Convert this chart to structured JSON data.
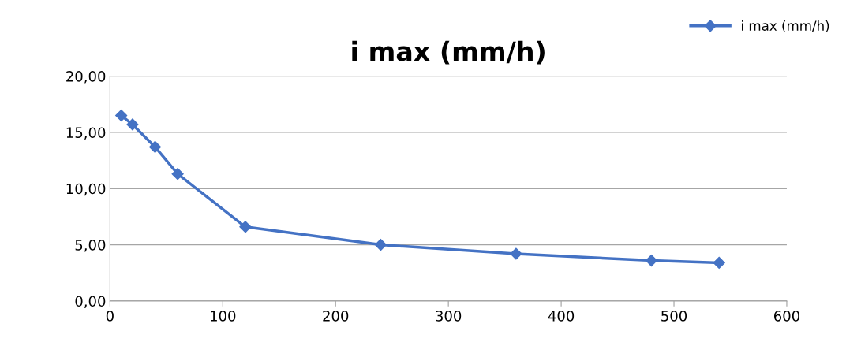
{
  "chart_data": {
    "type": "line",
    "title": "i max (mm/h)",
    "x": [
      10,
      20,
      40,
      60,
      120,
      240,
      360,
      480,
      540
    ],
    "series": [
      {
        "name": "i max (mm/h)",
        "color": "#4472c4",
        "values": [
          16.5,
          15.7,
          13.7,
          11.3,
          6.6,
          5.0,
          4.2,
          3.6,
          3.4
        ]
      }
    ],
    "xlim": [
      0,
      600
    ],
    "xticks": [
      0,
      100,
      200,
      300,
      400,
      500,
      600
    ],
    "ylim": [
      0,
      20
    ],
    "yticks": [
      {
        "value": 0,
        "label": "0,00"
      },
      {
        "value": 5,
        "label": "5,00"
      },
      {
        "value": 10,
        "label": "10,00"
      },
      {
        "value": 15,
        "label": "15,00"
      },
      {
        "value": 20,
        "label": "20,00"
      }
    ],
    "grid": "y",
    "legend": "top right",
    "marker": "diamond",
    "line_style": "solid"
  }
}
